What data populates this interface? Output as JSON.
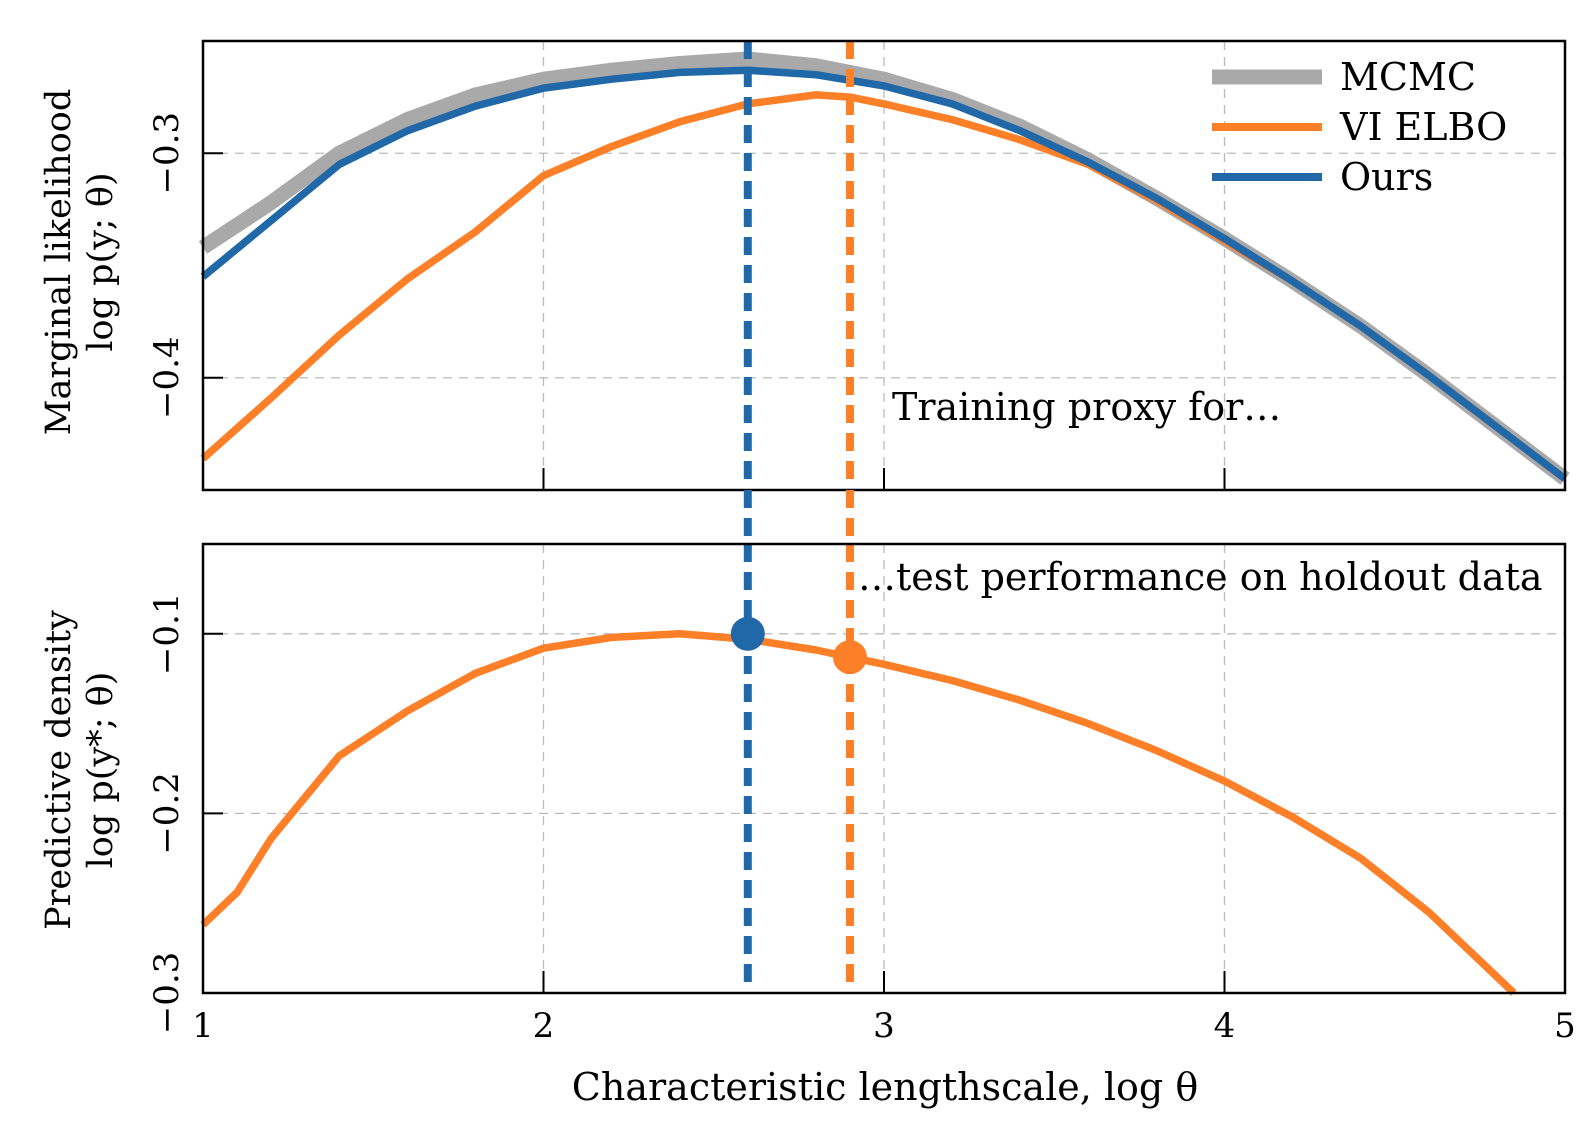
{
  "chart_data": {
    "type": "line",
    "xlabel": "Characteristic lengthscale, log θ",
    "x_ticks": [
      1,
      2,
      3,
      4,
      5
    ],
    "x_tick_labels": [
      "1",
      "2",
      "3",
      "4",
      "5"
    ],
    "xlim": [
      1,
      5
    ],
    "grid": true,
    "legend_placement": "top-right",
    "colors": {
      "mcmc": "#a9a9a9",
      "vi_elbo": "#fd7f28",
      "ours": "#2168a8",
      "grid": "#bbbbbb"
    },
    "panels": [
      {
        "id": "top",
        "ylabel_line1": "Marginal likelihood",
        "ylabel_line2": "log p(y; θ)",
        "ylim": [
          -0.45,
          -0.25
        ],
        "y_ticks": [
          -0.3,
          -0.4
        ],
        "y_tick_labels": [
          "−0.3",
          "−0.4"
        ],
        "annotation": "Training proxy for…",
        "series": [
          {
            "name": "MCMC",
            "color": "#a9a9a9",
            "x": [
              1.0,
              1.2,
              1.4,
              1.6,
              1.8,
              2.0,
              2.2,
              2.4,
              2.6,
              2.8,
              3.0,
              3.2,
              3.4,
              3.6,
              3.8,
              4.0,
              4.2,
              4.4,
              4.6,
              4.8,
              5.0
            ],
            "y": [
              -0.342,
              -0.322,
              -0.3,
              -0.285,
              -0.274,
              -0.267,
              -0.263,
              -0.26,
              -0.258,
              -0.261,
              -0.267,
              -0.276,
              -0.288,
              -0.303,
              -0.32,
              -0.338,
              -0.357,
              -0.377,
              -0.399,
              -0.422,
              -0.445
            ]
          },
          {
            "name": "VI ELBO",
            "color": "#fd7f28",
            "x": [
              1.0,
              1.2,
              1.4,
              1.6,
              1.8,
              2.0,
              2.2,
              2.4,
              2.6,
              2.8,
              2.9,
              3.0,
              3.2,
              3.4,
              3.6,
              3.8,
              4.0,
              4.2,
              4.4,
              4.6,
              4.8,
              5.0
            ],
            "y": [
              -0.436,
              -0.409,
              -0.381,
              -0.356,
              -0.335,
              -0.31,
              -0.297,
              -0.286,
              -0.278,
              -0.274,
              -0.275,
              -0.278,
              -0.285,
              -0.294,
              -0.305,
              -0.321,
              -0.339,
              -0.357,
              -0.377,
              -0.399,
              -0.422,
              -0.445
            ]
          },
          {
            "name": "Ours",
            "color": "#2168a8",
            "x": [
              1.0,
              1.2,
              1.4,
              1.6,
              1.8,
              2.0,
              2.2,
              2.4,
              2.6,
              2.8,
              3.0,
              3.2,
              3.4,
              3.6,
              3.8,
              4.0,
              4.2,
              4.4,
              4.6,
              4.8,
              5.0
            ],
            "y": [
              -0.355,
              -0.33,
              -0.305,
              -0.29,
              -0.279,
              -0.271,
              -0.267,
              -0.264,
              -0.263,
              -0.265,
              -0.27,
              -0.278,
              -0.29,
              -0.304,
              -0.32,
              -0.338,
              -0.357,
              -0.377,
              -0.399,
              -0.422,
              -0.445
            ]
          }
        ]
      },
      {
        "id": "bottom",
        "ylabel_line1": "Predictive density",
        "ylabel_line2": "log p(y*; θ)",
        "ylim": [
          -0.3,
          -0.05
        ],
        "y_ticks": [
          -0.1,
          -0.2,
          -0.3
        ],
        "y_tick_labels": [
          "−0.1",
          "−0.2",
          "−0.3"
        ],
        "annotation": "…test performance on holdout data",
        "series": [
          {
            "name": "Predictive density",
            "color": "#fd7f28",
            "x": [
              1.0,
              1.1,
              1.2,
              1.4,
              1.6,
              1.8,
              2.0,
              2.2,
              2.4,
              2.6,
              2.8,
              3.0,
              3.2,
              3.4,
              3.6,
              3.8,
              4.0,
              4.2,
              4.4,
              4.6,
              4.85
            ],
            "y": [
              -0.262,
              -0.244,
              -0.214,
              -0.168,
              -0.143,
              -0.122,
              -0.108,
              -0.102,
              -0.1,
              -0.103,
              -0.109,
              -0.117,
              -0.126,
              -0.137,
              -0.15,
              -0.165,
              -0.182,
              -0.202,
              -0.225,
              -0.255,
              -0.3
            ]
          }
        ]
      }
    ],
    "vertical_lines": [
      {
        "x": 2.6,
        "color": "#2168a8",
        "style": "dashed"
      },
      {
        "x": 2.9,
        "color": "#fd7f28",
        "style": "dashed"
      }
    ],
    "markers": [
      {
        "x": 2.6,
        "y": -0.1,
        "color": "#2168a8"
      },
      {
        "x": 2.9,
        "y": -0.113,
        "color": "#fd7f28"
      }
    ],
    "legend": [
      "MCMC",
      "VI ELBO",
      "Ours"
    ]
  }
}
